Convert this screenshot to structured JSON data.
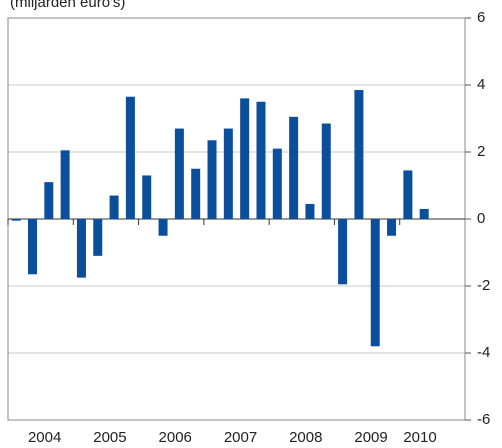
{
  "chart_data": {
    "type": "bar",
    "title": "(miljarden euro's)",
    "years": [
      "2004",
      "2005",
      "2006",
      "2007",
      "2008",
      "2009",
      "2010"
    ],
    "values": [
      -0.05,
      -1.65,
      1.1,
      2.05,
      -1.75,
      -1.1,
      0.7,
      3.65,
      1.3,
      -0.5,
      2.7,
      1.5,
      2.35,
      2.7,
      3.6,
      3.5,
      2.1,
      3.05,
      0.45,
      2.85,
      -1.95,
      3.85,
      -3.8,
      -0.5,
      1.45,
      0.3
    ],
    "color": "#0b4f9c",
    "ylim": [
      -6,
      6
    ],
    "yticks": [
      -6,
      -4,
      -2,
      0,
      2,
      4,
      6
    ],
    "grid": true
  }
}
